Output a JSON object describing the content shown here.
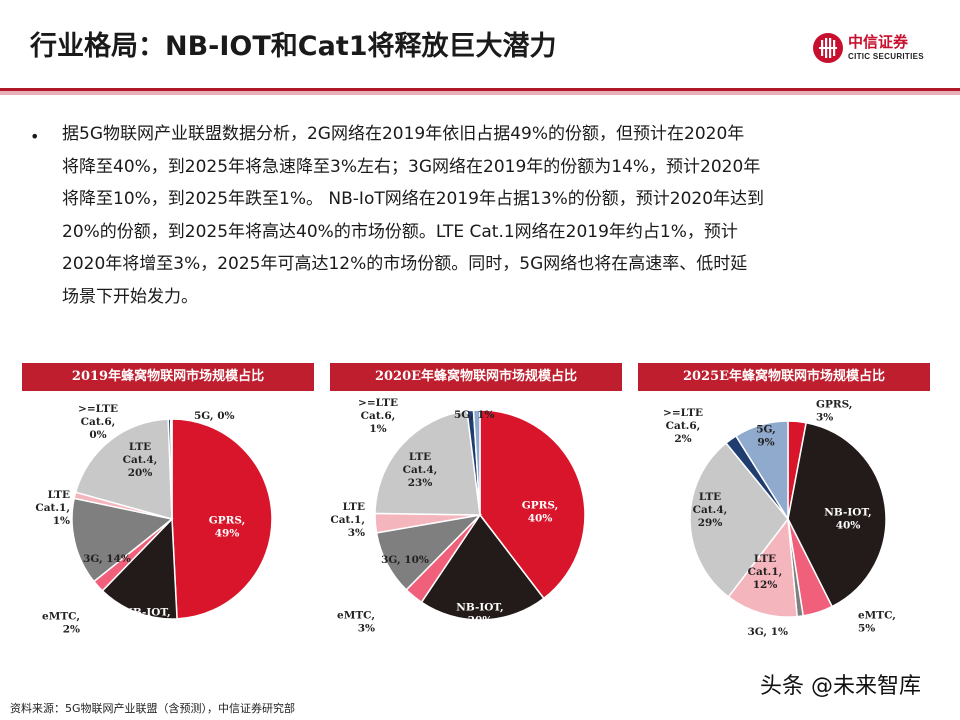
{
  "header": {
    "title": "行业格局：NB-IOT和Cat1将释放巨大潜力",
    "logo_cn": "中信证券",
    "logo_en": "CITIC SECURITIES"
  },
  "body": {
    "bullet": "•",
    "lines": [
      "据5G物联网产业联盟数据分析，2G网络在2019年依旧占据49%的份额，但预计在2020年",
      "将降至40%，到2025年将急速降至3%左右；3G网络在2019年的份额为14%，预计2020年",
      "将降至10%，到2025年跌至1%。 NB-IoT网络在2019年占据13%的份额，预计2020年达到",
      "20%的份额，到2025年将高达40%的市场份额。LTE Cat.1网络在2019年约占1%，预计",
      "2020年将增至3%，2025年可高达12%的市场份额。同时，5G网络也将在高速率、低时延",
      "场景下开始发力。"
    ]
  },
  "footer": {
    "source": "资料来源：5G物联网产业联盟（含预测），中信证券研究部",
    "watermark": "头条 @未来智库"
  },
  "chart_data": [
    {
      "type": "pie",
      "title": "2019年蜂窝物联网市场规模占比",
      "slices": [
        {
          "name": "GPRS",
          "value": 49,
          "label": [
            "GPRS,",
            "49%"
          ],
          "color": "#d9152b",
          "text_color": "#ffffff"
        },
        {
          "name": "NB-IOT",
          "value": 13,
          "label": [
            "NB-IOT,",
            "13%"
          ],
          "color": "#231a1a",
          "text_color": "#ffffff"
        },
        {
          "name": "eMTC",
          "value": 2,
          "label": [
            "eMTC,",
            "2%"
          ],
          "color": "#f0607a",
          "text_color": "#222222"
        },
        {
          "name": "3G",
          "value": 14,
          "label": [
            "3G, 14%"
          ],
          "color": "#7f7f7f",
          "text_color": "#222222"
        },
        {
          "name": "LTE Cat.1",
          "value": 1,
          "label": [
            "LTE",
            "Cat.1,",
            "1%"
          ],
          "color": "#f5b5bd",
          "text_color": "#222222"
        },
        {
          "name": "LTE Cat.4",
          "value": 20,
          "label": [
            "LTE",
            "Cat.4,",
            "20%"
          ],
          "color": "#c8c8c8",
          "text_color": "#222222"
        },
        {
          "name": ">=LTE Cat.6",
          "value": 0.4,
          "label": [
            ">=LTE",
            "Cat.6,",
            "0%"
          ],
          "color": "#1f3d6e",
          "text_color": "#222222"
        },
        {
          "name": "5G",
          "value": 0.2,
          "label": [
            "5G, 0%"
          ],
          "color": "#8faacc",
          "text_color": "#222222"
        }
      ]
    },
    {
      "type": "pie",
      "title": "2020E年蜂窝物联网市场规模占比",
      "slices": [
        {
          "name": "GPRS",
          "value": 40,
          "label": [
            "GPRS,",
            "40%"
          ],
          "color": "#d9152b",
          "text_color": "#ffffff"
        },
        {
          "name": "NB-IOT",
          "value": 20,
          "label": [
            "NB-IOT,",
            "20%"
          ],
          "color": "#231a1a",
          "text_color": "#ffffff"
        },
        {
          "name": "eMTC",
          "value": 3,
          "label": [
            "eMTC,",
            "3%"
          ],
          "color": "#f0607a",
          "text_color": "#222222"
        },
        {
          "name": "3G",
          "value": 10,
          "label": [
            "3G, 10%"
          ],
          "color": "#7f7f7f",
          "text_color": "#222222"
        },
        {
          "name": "LTE Cat.1",
          "value": 3,
          "label": [
            "LTE",
            "Cat.1,",
            "3%"
          ],
          "color": "#f5b5bd",
          "text_color": "#222222"
        },
        {
          "name": "LTE Cat.4",
          "value": 23,
          "label": [
            "LTE",
            "Cat.4,",
            "23%"
          ],
          "color": "#c8c8c8",
          "text_color": "#222222"
        },
        {
          "name": ">=LTE Cat.6",
          "value": 1,
          "label": [
            ">=LTE",
            "Cat.6,",
            "1%"
          ],
          "color": "#1f3d6e",
          "text_color": "#222222"
        },
        {
          "name": "5G",
          "value": 1,
          "label": [
            "5G, 1%"
          ],
          "color": "#8faacc",
          "text_color": "#222222"
        }
      ]
    },
    {
      "type": "pie",
      "title": "2025E年蜂窝物联网市场规模占比",
      "slices": [
        {
          "name": "GPRS",
          "value": 3,
          "label": [
            "GPRS,",
            "3%"
          ],
          "color": "#d9152b",
          "text_color": "#222222"
        },
        {
          "name": "NB-IOT",
          "value": 40,
          "label": [
            "NB-IOT,",
            "40%"
          ],
          "color": "#231a1a",
          "text_color": "#ffffff"
        },
        {
          "name": "eMTC",
          "value": 5,
          "label": [
            "eMTC,",
            "5%"
          ],
          "color": "#f0607a",
          "text_color": "#222222"
        },
        {
          "name": "3G",
          "value": 1,
          "label": [
            "3G, 1%"
          ],
          "color": "#7f7f7f",
          "text_color": "#222222"
        },
        {
          "name": "LTE Cat.1",
          "value": 12,
          "label": [
            "LTE",
            "Cat.1,",
            "12%"
          ],
          "color": "#f5b5bd",
          "text_color": "#222222"
        },
        {
          "name": "LTE Cat.4",
          "value": 29,
          "label": [
            "LTE",
            "Cat.4,",
            "29%"
          ],
          "color": "#c8c8c8",
          "text_color": "#222222"
        },
        {
          "name": ">=LTE Cat.6",
          "value": 2,
          "label": [
            ">=LTE",
            "Cat.6,",
            "2%"
          ],
          "color": "#1f3d6e",
          "text_color": "#222222"
        },
        {
          "name": "5G",
          "value": 9,
          "label": [
            "5G,",
            "9%"
          ],
          "color": "#8faacc",
          "text_color": "#222222"
        }
      ]
    }
  ]
}
